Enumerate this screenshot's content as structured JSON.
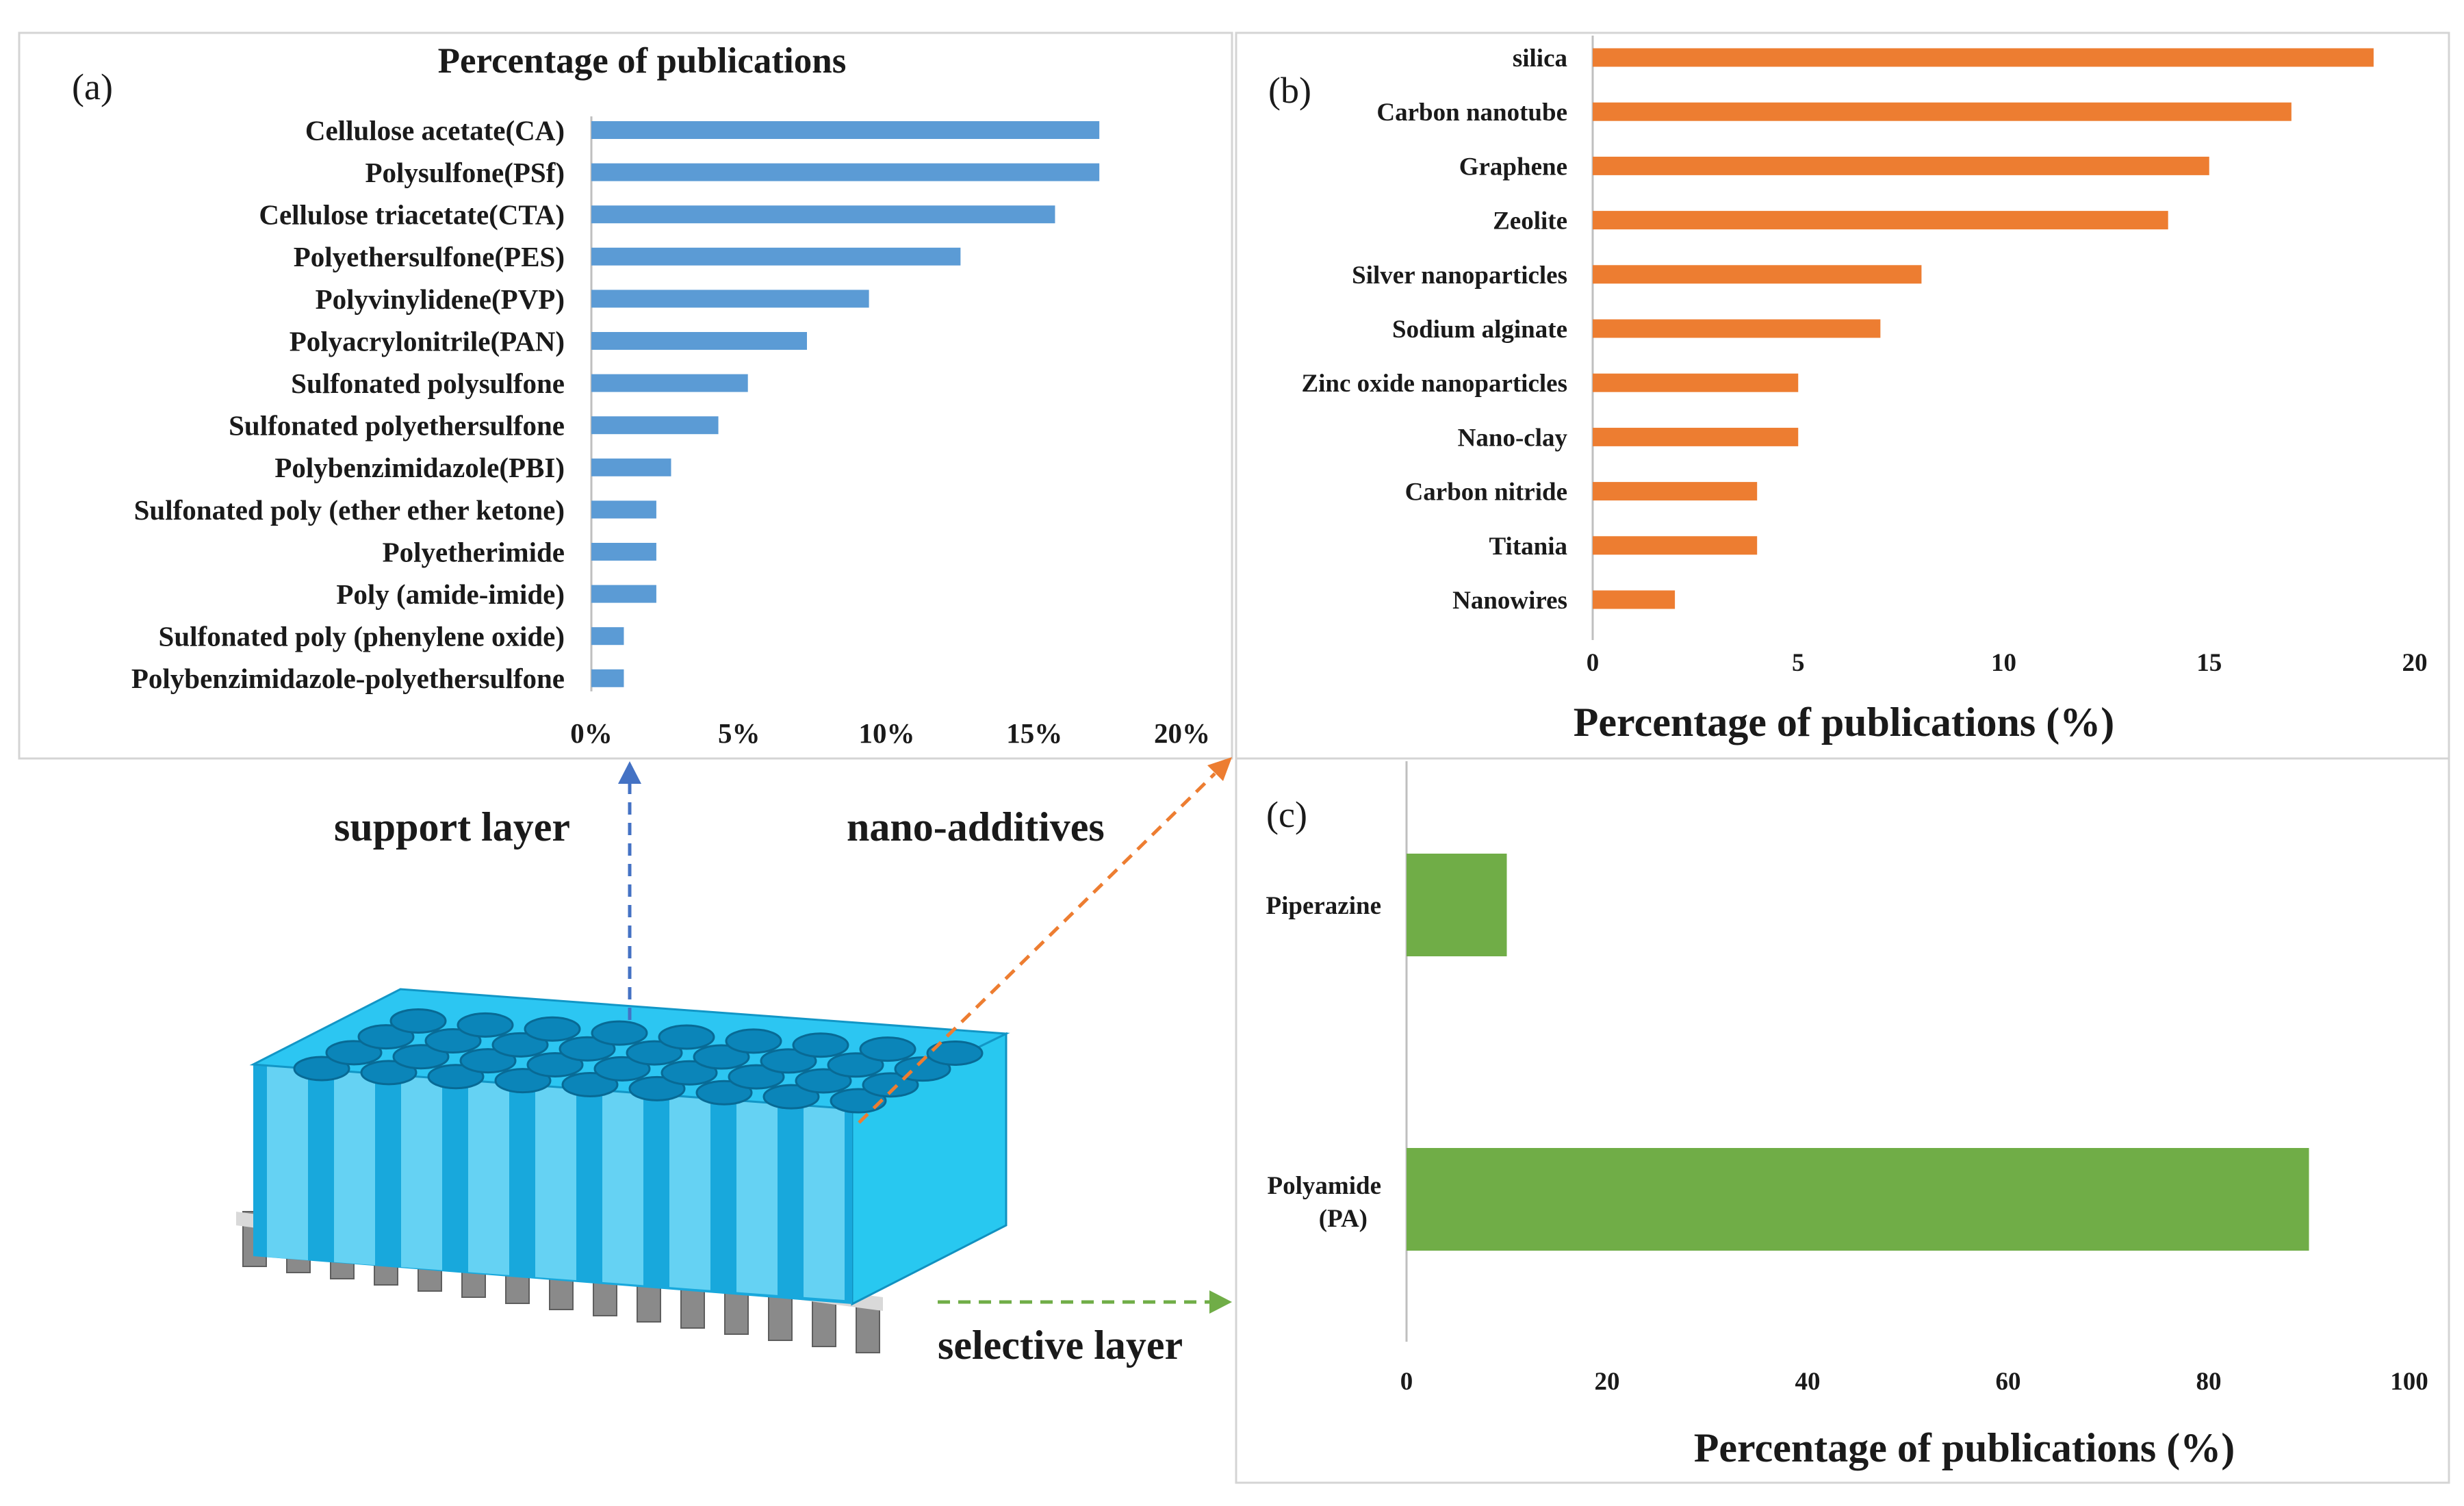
{
  "colors": {
    "blue": "#5b9bd5",
    "orange": "#ed7d31",
    "green": "#70ad47",
    "cyan": "#1fb8e8",
    "fiber": "#c8874a"
  },
  "labels": {
    "support": "support layer",
    "nano": "nano-additives",
    "selective": "selective layer"
  },
  "chart_data": [
    {
      "id": "a",
      "panel_label": "(a)",
      "type": "bar",
      "orientation": "horizontal",
      "title": "Percentage of publications",
      "xlabel": "",
      "xlim": [
        0,
        20
      ],
      "ticks": [
        "0%",
        "5%",
        "10%",
        "15%",
        "20%"
      ],
      "categories": [
        "Cellulose acetate(CA)",
        "Polysulfone(PSf)",
        "Cellulose triacetate(CTA)",
        "Polyethersulfone(PES)",
        "Polyvinylidene(PVP)",
        "Polyacrylonitrile(PAN)",
        "Sulfonated polysulfone",
        "Sulfonated polyethersulfone",
        "Polybenzimidazole(PBI)",
        "Sulfonated poly (ether ether ketone)",
        "Polyetherimide",
        "Poly (amide-imide)",
        "Sulfonated poly (phenylene oxide)",
        "Polybenzimidazole-polyethersulfone"
      ],
      "values": [
        17.2,
        17.2,
        15.7,
        12.5,
        9.4,
        7.3,
        5.3,
        4.3,
        2.7,
        2.2,
        2.2,
        2.2,
        1.1,
        1.1
      ]
    },
    {
      "id": "b",
      "panel_label": "(b)",
      "type": "bar",
      "orientation": "horizontal",
      "title": "",
      "xlabel": "Percentage of publications (%)",
      "xlim": [
        0,
        20
      ],
      "ticks": [
        "0",
        "5",
        "10",
        "15",
        "20"
      ],
      "categories": [
        "silica",
        "Carbon nanotube",
        "Graphene",
        "Zeolite",
        "Silver nanoparticles",
        "Sodium alginate",
        "Zinc oxide nanoparticles",
        "Nano-clay",
        "Carbon nitride",
        "Titania",
        "Nanowires"
      ],
      "values": [
        19,
        17,
        15,
        14,
        8,
        7,
        5,
        5,
        4,
        4,
        2
      ]
    },
    {
      "id": "c",
      "panel_label": "(c)",
      "type": "bar",
      "orientation": "horizontal",
      "title": "",
      "xlabel": "Percentage of publications (%)",
      "xlim": [
        0,
        100
      ],
      "ticks": [
        "0",
        "20",
        "40",
        "60",
        "80",
        "100"
      ],
      "categories": [
        "Piperazine",
        "Polyamide (PA)"
      ],
      "values": [
        10,
        90
      ]
    }
  ]
}
